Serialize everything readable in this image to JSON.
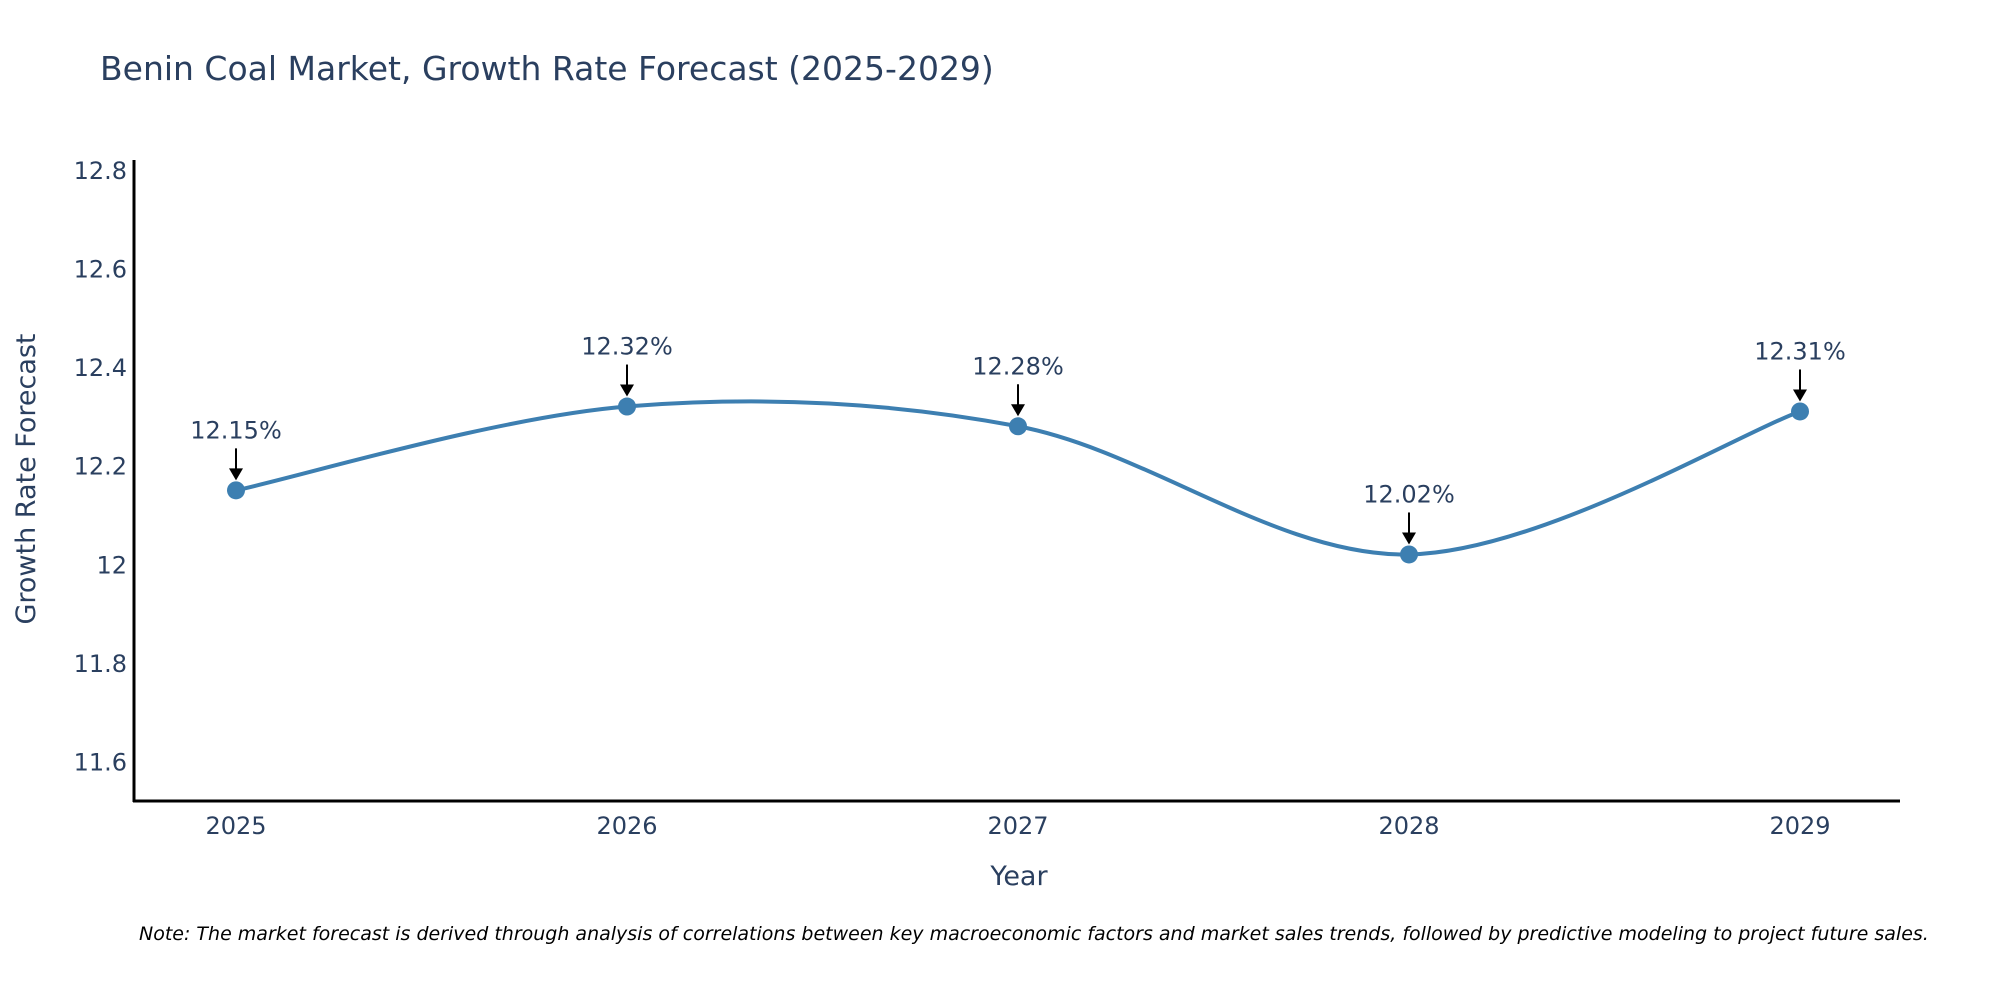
{
  "chart_data": {
    "type": "line",
    "title": "Benin Coal Market, Growth Rate Forecast (2025-2029)",
    "xlabel": "Year",
    "ylabel": "Growth Rate Forecast",
    "categories": [
      "2025",
      "2026",
      "2027",
      "2028",
      "2029"
    ],
    "series": [
      {
        "name": "Growth Rate Forecast",
        "values": [
          12.15,
          12.32,
          12.28,
          12.02,
          12.31
        ]
      }
    ],
    "data_labels": [
      "12.15%",
      "12.32%",
      "12.28%",
      "12.02%",
      "12.31%"
    ],
    "yticks": [
      11.6,
      11.8,
      12,
      12.2,
      12.4,
      12.6,
      12.8
    ],
    "ytick_labels": [
      "11.6",
      "11.8",
      "12",
      "12.2",
      "12.4",
      "12.6",
      "12.8"
    ],
    "ylim": [
      11.52,
      12.82
    ],
    "grid": false,
    "line_color": "#3d7fb1",
    "note": "Note: The market forecast is derived through analysis of correlations between key macroeconomic factors and market sales trends, followed by predictive modeling to project future sales."
  }
}
